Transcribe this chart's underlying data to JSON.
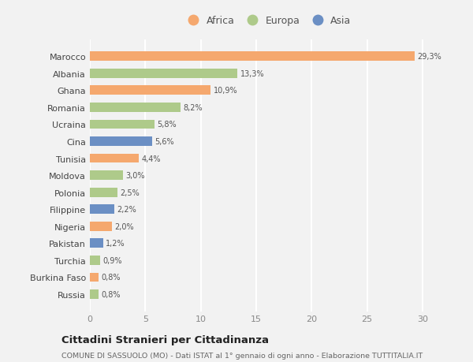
{
  "countries": [
    "Marocco",
    "Albania",
    "Ghana",
    "Romania",
    "Ucraina",
    "Cina",
    "Tunisia",
    "Moldova",
    "Polonia",
    "Filippine",
    "Nigeria",
    "Pakistan",
    "Turchia",
    "Burkina Faso",
    "Russia"
  ],
  "values": [
    29.3,
    13.3,
    10.9,
    8.2,
    5.8,
    5.6,
    4.4,
    3.0,
    2.5,
    2.2,
    2.0,
    1.2,
    0.9,
    0.8,
    0.8
  ],
  "labels": [
    "29,3%",
    "13,3%",
    "10,9%",
    "8,2%",
    "5,8%",
    "5,6%",
    "4,4%",
    "3,0%",
    "2,5%",
    "2,2%",
    "2,0%",
    "1,2%",
    "0,9%",
    "0,8%",
    "0,8%"
  ],
  "continents": [
    "Africa",
    "Europa",
    "Africa",
    "Europa",
    "Europa",
    "Asia",
    "Africa",
    "Europa",
    "Europa",
    "Asia",
    "Africa",
    "Asia",
    "Europa",
    "Africa",
    "Europa"
  ],
  "colors": {
    "Africa": "#F5A86E",
    "Europa": "#AECA8A",
    "Asia": "#6B8FC4"
  },
  "bg_color": "#F2F2F2",
  "grid_color": "#FFFFFF",
  "title": "Cittadini Stranieri per Cittadinanza",
  "subtitle": "COMUNE DI SASSUOLO (MO) - Dati ISTAT al 1° gennaio di ogni anno - Elaborazione TUTTITALIA.IT",
  "xlim": [
    0,
    32
  ],
  "xticks": [
    0,
    5,
    10,
    15,
    20,
    25,
    30
  ]
}
